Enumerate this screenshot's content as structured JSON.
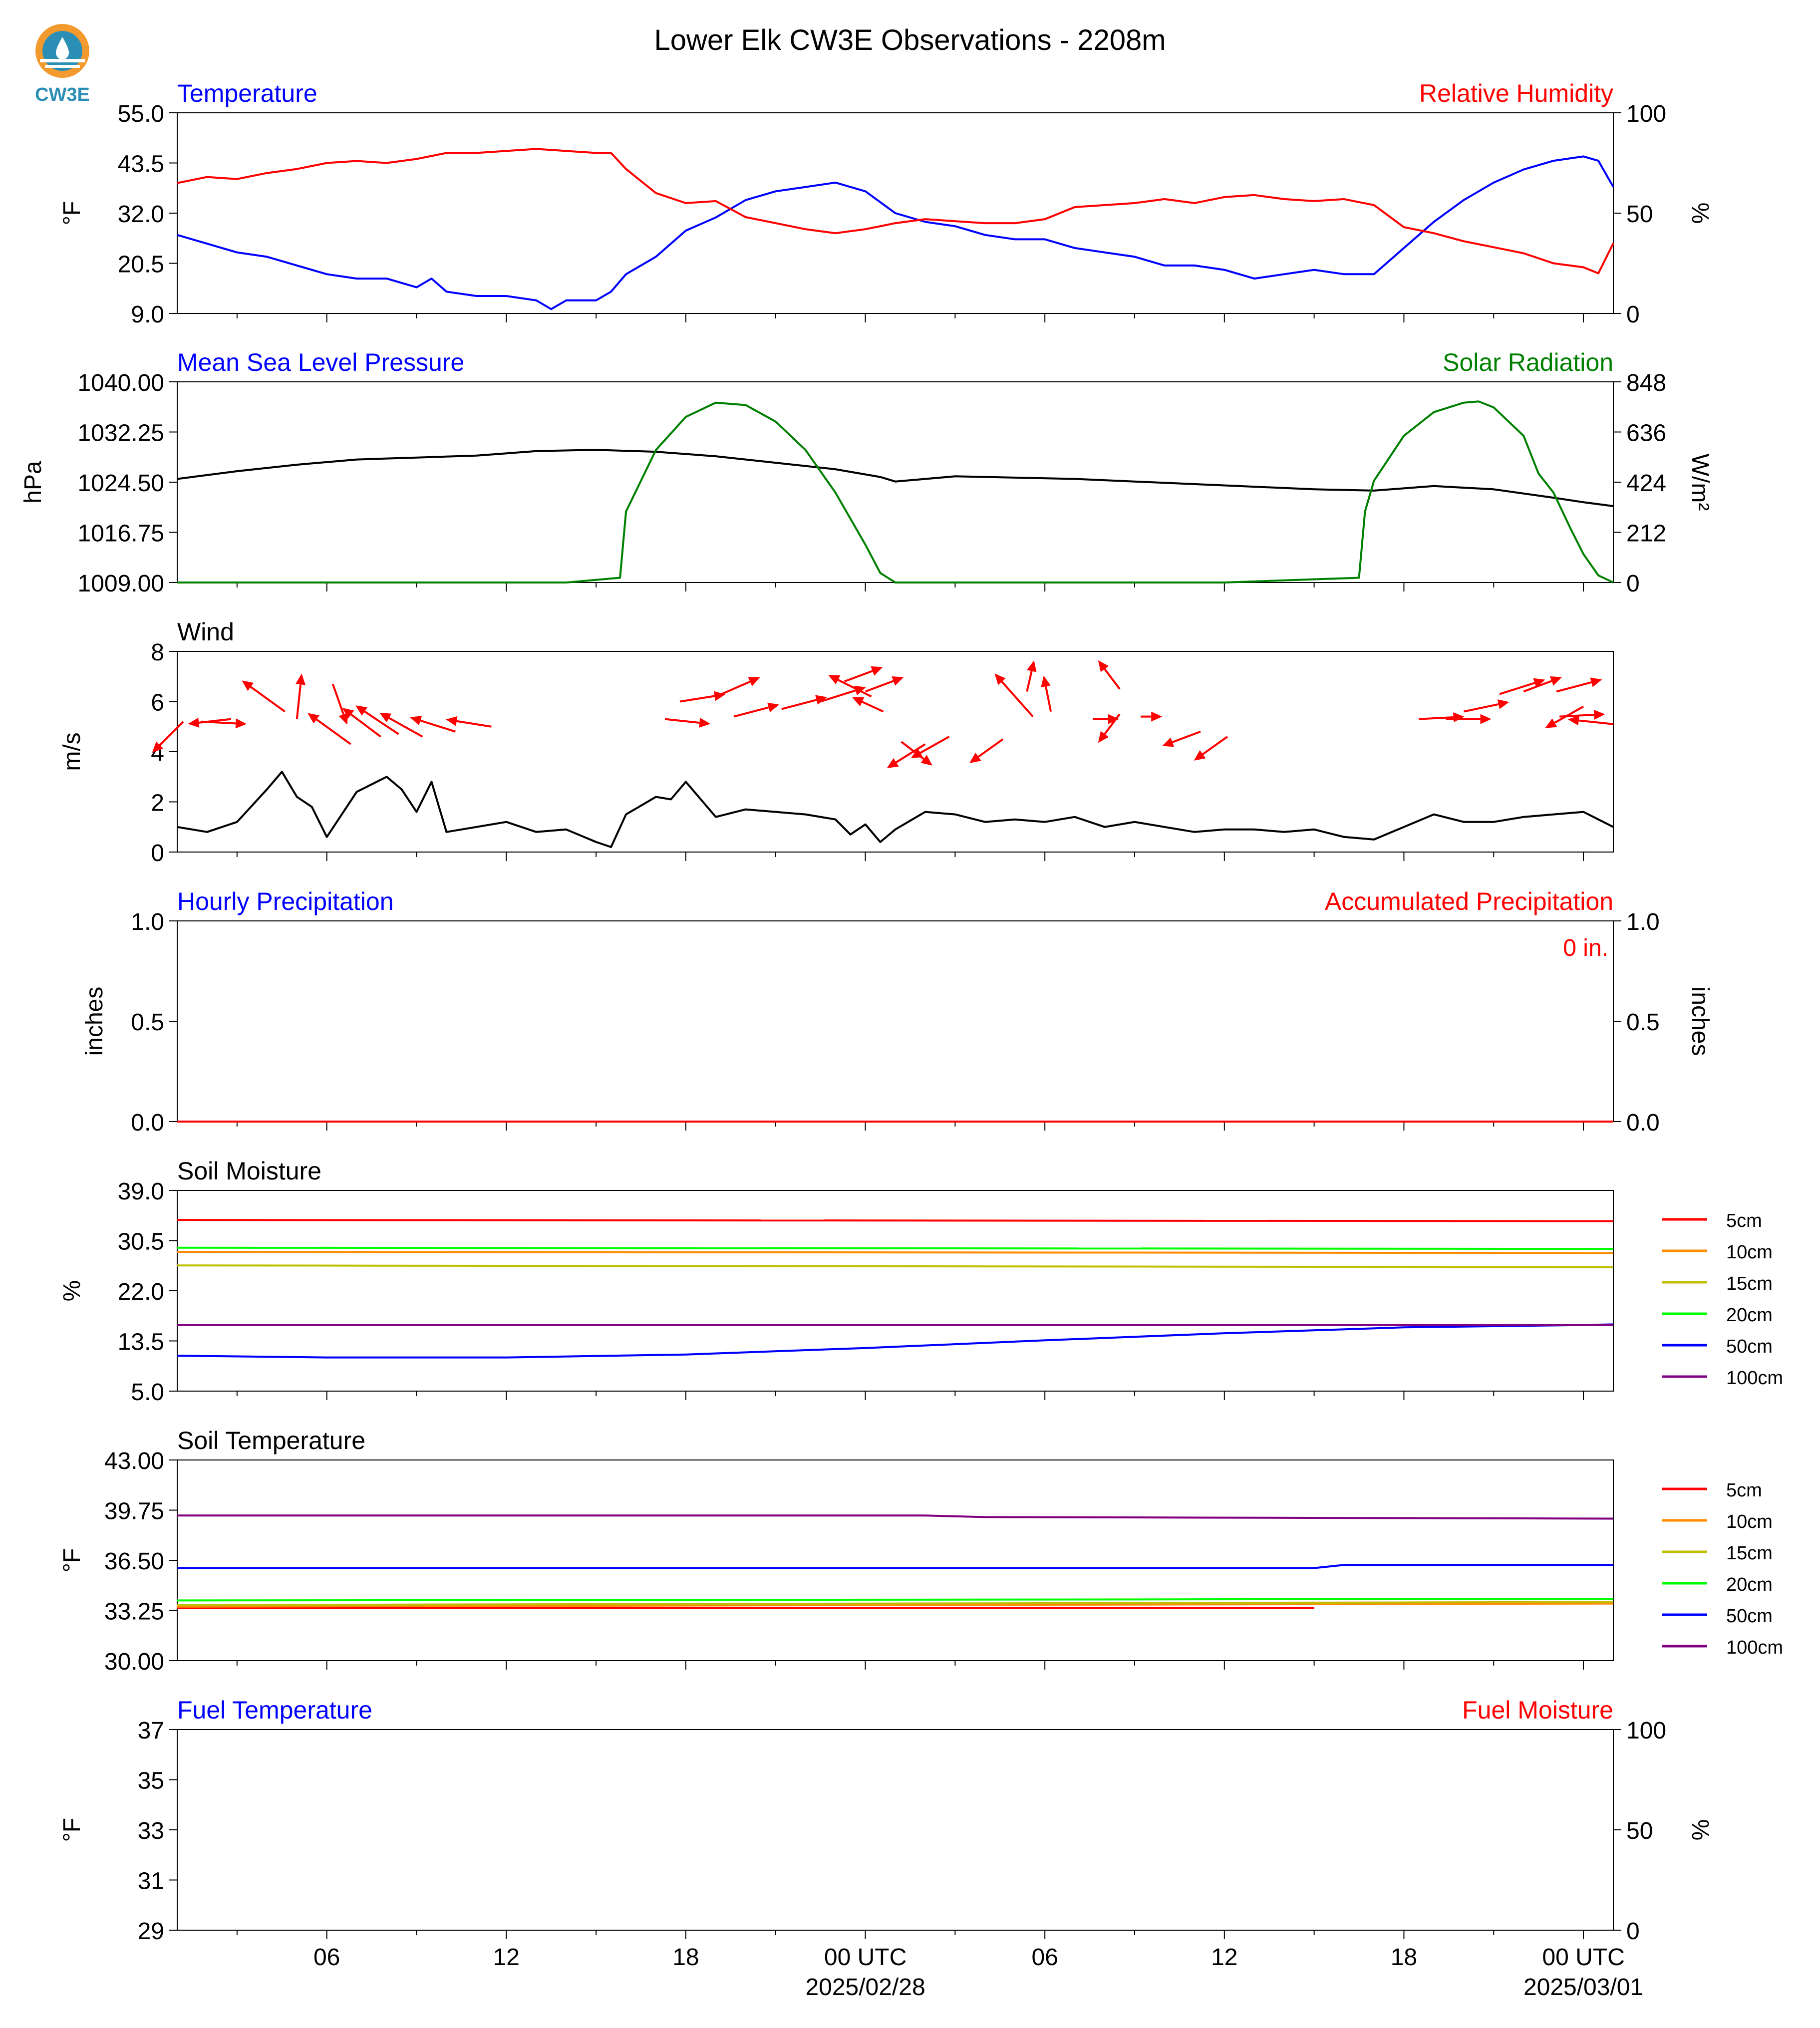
{
  "title": "Lower Elk CW3E Observations - 2208m",
  "logo_text": "CW3E",
  "colors": {
    "blue": "#0000ff",
    "red": "#ff0000",
    "green": "#008000",
    "black": "#000000",
    "logo": "#2b8fb5",
    "logo_orange": "#f29a2e"
  },
  "x_axis": {
    "ticks": [
      {
        "hour": 6,
        "label": "06"
      },
      {
        "hour": 12,
        "label": "12"
      },
      {
        "hour": 18,
        "label": "18"
      },
      {
        "hour": 24,
        "label": "00 UTC",
        "sublabel": "2025/02/28"
      },
      {
        "hour": 30,
        "label": "06"
      },
      {
        "hour": 36,
        "label": "12"
      },
      {
        "hour": 42,
        "label": "18"
      },
      {
        "hour": 48,
        "label": "00 UTC",
        "sublabel": "2025/03/01"
      }
    ],
    "range_hours": [
      1,
      49
    ]
  },
  "chart_data": [
    {
      "type": "line",
      "left_title": "Temperature",
      "right_title": "Relative Humidity",
      "ylabel": "°F",
      "ylabel2": "%",
      "ylim": [
        9,
        55
      ],
      "yticks": [
        "55.0",
        "43.5",
        "32.0",
        "20.5",
        "9.0"
      ],
      "ylim2": [
        0,
        100
      ],
      "yticks2": [
        "100",
        "50",
        "0"
      ],
      "series": [
        {
          "name": "Temperature",
          "axis": "left",
          "color": "#0000ff",
          "x": [
            1,
            2,
            3,
            4,
            5,
            6,
            7,
            8,
            9,
            9.5,
            10,
            11,
            12,
            13,
            13.5,
            14,
            15,
            15.5,
            16,
            17,
            18,
            19,
            20,
            21,
            22,
            23,
            24,
            25,
            26,
            27,
            28,
            29,
            30,
            31,
            32,
            33,
            34,
            35,
            36,
            37,
            38,
            39,
            40,
            41,
            42,
            43,
            44,
            45,
            46,
            47,
            48,
            48.5,
            49
          ],
          "y": [
            27,
            25,
            23,
            22,
            20,
            18,
            17,
            17,
            15,
            17,
            14,
            13,
            13,
            12,
            10,
            12,
            12,
            14,
            18,
            22,
            28,
            31,
            35,
            37,
            38,
            39,
            37,
            32,
            30,
            29,
            27,
            26,
            26,
            24,
            23,
            22,
            20,
            20,
            19,
            17,
            18,
            19,
            18,
            18,
            24,
            30,
            35,
            39,
            42,
            44,
            45,
            44,
            38
          ]
        },
        {
          "name": "Relative Humidity",
          "axis": "right",
          "color": "#ff0000",
          "x": [
            1,
            2,
            3,
            4,
            5,
            6,
            7,
            8,
            9,
            10,
            11,
            12,
            13,
            14,
            15,
            15.5,
            16,
            17,
            18,
            19,
            20,
            21,
            22,
            23,
            24,
            25,
            26,
            27,
            28,
            29,
            30,
            31,
            32,
            33,
            34,
            35,
            36,
            37,
            38,
            39,
            40,
            41,
            42,
            43,
            44,
            45,
            46,
            47,
            48,
            48.5,
            49
          ],
          "y": [
            65,
            68,
            67,
            70,
            72,
            75,
            76,
            75,
            77,
            80,
            80,
            81,
            82,
            81,
            80,
            80,
            72,
            60,
            55,
            56,
            48,
            45,
            42,
            40,
            42,
            45,
            47,
            46,
            45,
            45,
            47,
            53,
            54,
            55,
            57,
            55,
            58,
            59,
            57,
            56,
            57,
            54,
            43,
            40,
            36,
            33,
            30,
            25,
            23,
            20,
            35
          ]
        }
      ]
    },
    {
      "type": "line",
      "left_title": "Mean Sea Level Pressure",
      "right_title": "Solar Radiation",
      "ylabel": "hPa",
      "ylabel2": "W/m²",
      "ylim": [
        1009,
        1040
      ],
      "yticks": [
        "1040.00",
        "1032.25",
        "1024.50",
        "1016.75",
        "1009.00"
      ],
      "ylim2": [
        0,
        848
      ],
      "yticks2": [
        "848",
        "636",
        "424",
        "212",
        "0"
      ],
      "series": [
        {
          "name": "Mean Sea Level Pressure",
          "axis": "left",
          "color": "#000000",
          "x": [
            1,
            3,
            5,
            7,
            9,
            11,
            13,
            15,
            17,
            19,
            21,
            23,
            24.5,
            25,
            27,
            29,
            31,
            33,
            35,
            37,
            39,
            41,
            43,
            45,
            47,
            48,
            49
          ],
          "y": [
            1025,
            1026.2,
            1027.2,
            1028,
            1028.3,
            1028.6,
            1029.3,
            1029.5,
            1029.2,
            1028.5,
            1027.5,
            1026.5,
            1025.3,
            1024.6,
            1025.4,
            1025.2,
            1025,
            1024.6,
            1024.2,
            1023.8,
            1023.4,
            1023.2,
            1023.9,
            1023.4,
            1022.1,
            1021.4,
            1020.8
          ]
        },
        {
          "name": "Solar Radiation",
          "axis": "right",
          "color": "#008000",
          "x": [
            1,
            14,
            15.8,
            16,
            17,
            18,
            19,
            20,
            21,
            22,
            23,
            24,
            24.5,
            25,
            36,
            40.5,
            40.7,
            41,
            42,
            43,
            44,
            44.5,
            45,
            46,
            46.5,
            47,
            47.3,
            47.6,
            48,
            48.5,
            49
          ],
          "y": [
            0,
            0,
            20,
            300,
            560,
            700,
            760,
            750,
            680,
            560,
            380,
            160,
            40,
            0,
            0,
            20,
            300,
            430,
            620,
            720,
            760,
            765,
            740,
            620,
            460,
            380,
            300,
            220,
            120,
            30,
            0
          ]
        }
      ]
    },
    {
      "type": "line",
      "left_title": "Wind",
      "ylabel": "m/s",
      "ylim": [
        0,
        8
      ],
      "yticks": [
        "8",
        "6",
        "4",
        "2",
        "0"
      ],
      "series": [
        {
          "name": "Wind",
          "axis": "left",
          "color": "#000000",
          "x": [
            1,
            2,
            3,
            4,
            4.5,
            5,
            5.5,
            6,
            6.5,
            7,
            8,
            8.5,
            9,
            9.5,
            10,
            11,
            12,
            13,
            14,
            15,
            15.5,
            16,
            17,
            17.5,
            18,
            19,
            20,
            21,
            22,
            23,
            23.5,
            24,
            24.5,
            25,
            26,
            27,
            28,
            29,
            30,
            31,
            32,
            33,
            34,
            35,
            36,
            37,
            38,
            39,
            40,
            41,
            42,
            43,
            44,
            45,
            46,
            47,
            48,
            48.5,
            49
          ],
          "y": [
            1,
            0.8,
            1.2,
            2.5,
            3.2,
            2.2,
            1.8,
            0.6,
            1.5,
            2.4,
            3,
            2.5,
            1.6,
            2.8,
            0.8,
            1,
            1.2,
            0.8,
            0.9,
            0.4,
            0.2,
            1.5,
            2.2,
            2.1,
            2.8,
            1.4,
            1.7,
            1.6,
            1.5,
            1.3,
            0.7,
            1.1,
            0.4,
            0.9,
            1.6,
            1.5,
            1.2,
            1.3,
            1.2,
            1.4,
            1,
            1.2,
            1,
            0.8,
            0.9,
            0.9,
            0.8,
            0.9,
            0.6,
            0.5,
            1,
            1.5,
            1.2,
            1.2,
            1.4,
            1.5,
            1.6,
            1.3,
            1
          ]
        },
        {
          "name": "Wind direction",
          "axis": "left",
          "color": "#ff0000",
          "type": "arrows",
          "x": [
            1.2,
            1.8,
            2.8,
            5,
            6.2,
            4.6,
            6.8,
            7.8,
            8.4,
            9.2,
            10.3,
            11.5,
            17.3,
            17.8,
            19.2,
            19.6,
            21.2,
            22.5,
            23.3,
            24,
            24.6,
            24.2,
            25.2,
            26,
            26.8,
            28.6,
            29.4,
            29.6,
            30.2,
            31.6,
            32.5,
            32.5,
            33.2,
            35.2,
            36.1,
            42.5,
            43.4,
            44,
            45.2,
            46,
            47.1,
            47.2,
            48,
            49
          ],
          "y": [
            5.2,
            5.2,
            5.3,
            5.3,
            6.7,
            5.6,
            4.3,
            4.6,
            4.7,
            4.6,
            4.8,
            5.0,
            5.3,
            6.0,
            6.3,
            5.4,
            5.7,
            6.0,
            6.8,
            6.4,
            5.6,
            6.2,
            4.4,
            4.3,
            4.6,
            4.5,
            6.4,
            5.4,
            5.6,
            5.3,
            5.5,
            6.5,
            5.4,
            4.8,
            4.6,
            5.3,
            5.3,
            5.6,
            6.3,
            6.4,
            6.4,
            5.4,
            5.8,
            5.1
          ],
          "u": [
            -1.3,
            1.9,
            -1.8,
            0.2,
            0.6,
            -1.8,
            -1.8,
            -1.6,
            -1.8,
            -1.8,
            -1.9,
            -1.9,
            1.9,
            1.9,
            1.6,
            1.9,
            1.9,
            1.9,
            1.6,
            1.6,
            -1.3,
            -1.8,
            1.3,
            -1.6,
            -1.6,
            -1.4,
            0.3,
            -1.6,
            -0.3,
            1.1,
            -0.9,
            -0.9,
            0.9,
            -1.6,
            -1.4,
            1.9,
            1.9,
            1.9,
            1.9,
            1.6,
            1.9,
            1.9,
            -1.6,
            -1.9
          ],
          "v": [
            -1.3,
            -0.1,
            -0.2,
            1.9,
            -1.7,
            1.3,
            1.3,
            1.2,
            1.2,
            1.0,
            0.6,
            0.3,
            -0.2,
            0.3,
            0.7,
            0.5,
            0.5,
            0.6,
            0.6,
            0.6,
            0.6,
            0.9,
            -1.0,
            -1.0,
            -0.9,
            -1.0,
            1.3,
            1.8,
            1.5,
            0.0,
            -1.2,
            1.2,
            0.0,
            -0.6,
            -1.0,
            0.1,
            0.0,
            0.4,
            0.6,
            0.6,
            0.5,
            0.1,
            -0.9,
            0.2
          ]
        }
      ]
    },
    {
      "type": "line",
      "left_title": "Hourly Precipitation",
      "right_title": "Accumulated Precipitation",
      "ylabel": "inches",
      "ylabel2": "inches",
      "ylim": [
        0,
        1
      ],
      "yticks": [
        "1.0",
        "0.5",
        "0.0"
      ],
      "ylim2": [
        0,
        1
      ],
      "yticks2": [
        "1.0",
        "0.5",
        "0.0"
      ],
      "annotation": "0 in.",
      "series": [
        {
          "name": "Accumulated Precipitation",
          "axis": "right",
          "color": "#ff0000",
          "x": [
            1,
            49
          ],
          "y": [
            0,
            0
          ]
        }
      ]
    },
    {
      "type": "line",
      "left_title": "Soil Moisture",
      "ylabel": "%",
      "ylim": [
        5,
        39
      ],
      "yticks": [
        "39.0",
        "30.5",
        "22.0",
        "13.5",
        "5.0"
      ],
      "legend": "right",
      "series": [
        {
          "name": "5cm",
          "color": "#ff0000",
          "x": [
            1,
            49
          ],
          "y": [
            34,
            33.8
          ]
        },
        {
          "name": "10cm",
          "color": "#ff8c00",
          "x": [
            1,
            49
          ],
          "y": [
            28.6,
            28.4
          ]
        },
        {
          "name": "15cm",
          "color": "#bfbf00",
          "x": [
            1,
            49
          ],
          "y": [
            26.3,
            26
          ]
        },
        {
          "name": "20cm",
          "color": "#00ff00",
          "x": [
            1,
            49
          ],
          "y": [
            29.3,
            29.1
          ]
        },
        {
          "name": "50cm",
          "color": "#0000ff",
          "x": [
            1,
            6,
            12,
            18,
            24,
            30,
            36,
            42,
            48,
            49
          ],
          "y": [
            11,
            10.7,
            10.7,
            11.2,
            12.3,
            13.6,
            14.8,
            15.8,
            16.2,
            16.3
          ]
        },
        {
          "name": "100cm",
          "color": "#800080",
          "x": [
            1,
            49
          ],
          "y": [
            16.2,
            16.2
          ]
        }
      ]
    },
    {
      "type": "line",
      "left_title": "Soil Temperature",
      "ylabel": "°F",
      "ylim": [
        30,
        43
      ],
      "yticks": [
        "43.00",
        "39.75",
        "36.50",
        "33.25",
        "30.00"
      ],
      "legend": "right",
      "series": [
        {
          "name": "5cm",
          "color": "#ff0000",
          "x": [
            1,
            39
          ],
          "y": [
            33.4,
            33.4
          ]
        },
        {
          "name": "10cm",
          "color": "#ff8c00",
          "x": [
            1,
            49
          ],
          "y": [
            33.5,
            33.7
          ]
        },
        {
          "name": "15cm",
          "color": "#bfbf00",
          "x": [
            1,
            49
          ],
          "y": [
            33.6,
            33.8
          ]
        },
        {
          "name": "20cm",
          "color": "#00ff00",
          "x": [
            1,
            49
          ],
          "y": [
            33.9,
            34.0
          ]
        },
        {
          "name": "50cm",
          "color": "#0000ff",
          "x": [
            1,
            39,
            40,
            49
          ],
          "y": [
            36.0,
            36.0,
            36.2,
            36.2
          ]
        },
        {
          "name": "100cm",
          "color": "#800080",
          "x": [
            1,
            26,
            28,
            49
          ],
          "y": [
            39.4,
            39.4,
            39.3,
            39.2
          ]
        }
      ]
    },
    {
      "type": "line",
      "left_title": "Fuel Temperature",
      "right_title": "Fuel Moisture",
      "ylabel": "°F",
      "ylabel2": "%",
      "ylim": [
        29,
        37
      ],
      "yticks": [
        "37",
        "35",
        "33",
        "31",
        "29"
      ],
      "ylim2": [
        0,
        100
      ],
      "yticks2": [
        "100",
        "50",
        "0"
      ],
      "series": []
    }
  ]
}
